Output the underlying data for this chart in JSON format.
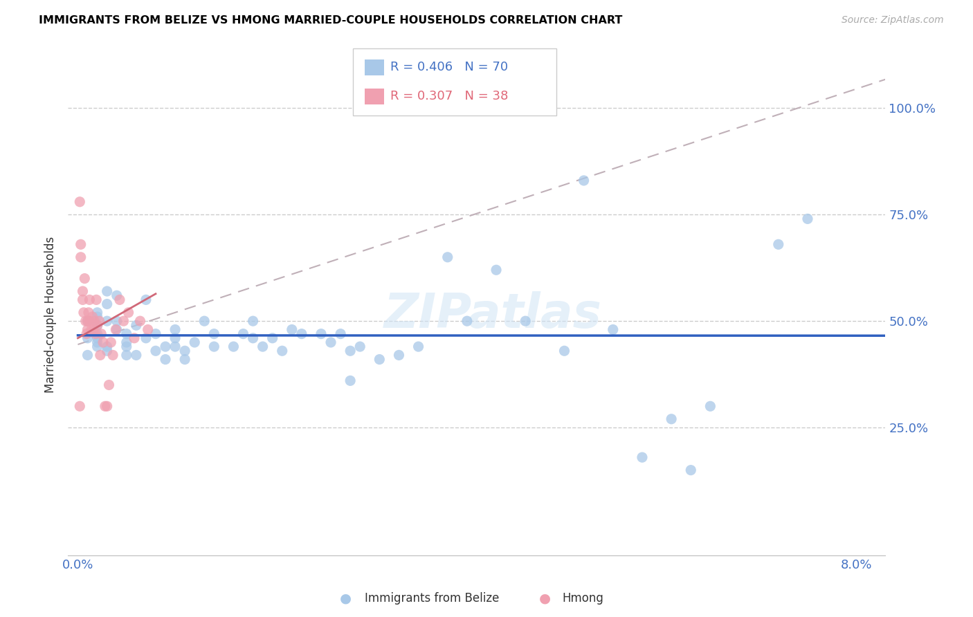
{
  "title": "IMMIGRANTS FROM BELIZE VS HMONG MARRIED-COUPLE HOUSEHOLDS CORRELATION CHART",
  "source": "Source: ZipAtlas.com",
  "ylabel": "Married-couple Households",
  "belize_color": "#a8c8e8",
  "hmong_color": "#f0a0b0",
  "belize_line_color": "#3060c0",
  "hmong_line_color": "#d06878",
  "hmong_dash_color": "#c8b0b8",
  "legend_belize_color": "#4472c4",
  "legend_hmong_color": "#e06878",
  "watermark": "ZIPatlas",
  "xmin": -0.001,
  "xmax": 0.083,
  "ymin": -0.05,
  "ymax": 1.08,
  "belize_x": [
    0.001,
    0.001,
    0.001,
    0.002,
    0.002,
    0.002,
    0.002,
    0.002,
    0.002,
    0.002,
    0.003,
    0.003,
    0.003,
    0.003,
    0.003,
    0.004,
    0.004,
    0.004,
    0.005,
    0.005,
    0.005,
    0.005,
    0.006,
    0.006,
    0.007,
    0.007,
    0.008,
    0.008,
    0.009,
    0.009,
    0.01,
    0.01,
    0.01,
    0.011,
    0.011,
    0.012,
    0.013,
    0.014,
    0.014,
    0.016,
    0.017,
    0.018,
    0.018,
    0.019,
    0.02,
    0.021,
    0.022,
    0.023,
    0.025,
    0.026,
    0.027,
    0.028,
    0.029,
    0.031,
    0.033,
    0.035,
    0.04,
    0.043,
    0.046,
    0.05,
    0.052,
    0.055,
    0.058,
    0.061,
    0.063,
    0.065,
    0.028,
    0.072,
    0.075,
    0.038
  ],
  "belize_y": [
    0.42,
    0.46,
    0.5,
    0.44,
    0.46,
    0.47,
    0.49,
    0.51,
    0.52,
    0.45,
    0.54,
    0.57,
    0.5,
    0.44,
    0.43,
    0.48,
    0.5,
    0.56,
    0.45,
    0.42,
    0.44,
    0.47,
    0.42,
    0.49,
    0.55,
    0.46,
    0.43,
    0.47,
    0.41,
    0.44,
    0.46,
    0.48,
    0.44,
    0.41,
    0.43,
    0.45,
    0.5,
    0.47,
    0.44,
    0.44,
    0.47,
    0.46,
    0.5,
    0.44,
    0.46,
    0.43,
    0.48,
    0.47,
    0.47,
    0.45,
    0.47,
    0.43,
    0.44,
    0.41,
    0.42,
    0.44,
    0.5,
    0.62,
    0.5,
    0.43,
    0.83,
    0.48,
    0.18,
    0.27,
    0.15,
    0.3,
    0.36,
    0.68,
    0.74,
    0.65
  ],
  "hmong_x": [
    0.0002,
    0.0002,
    0.0003,
    0.0003,
    0.0005,
    0.0005,
    0.0006,
    0.0007,
    0.0008,
    0.0009,
    0.001,
    0.001,
    0.0011,
    0.0012,
    0.0012,
    0.0014,
    0.0015,
    0.0016,
    0.0017,
    0.0018,
    0.0019,
    0.002,
    0.0022,
    0.0023,
    0.0024,
    0.0026,
    0.0028,
    0.003,
    0.0032,
    0.0034,
    0.0036,
    0.0039,
    0.0043,
    0.0047,
    0.0052,
    0.0058,
    0.0064,
    0.0072
  ],
  "hmong_y": [
    0.78,
    0.3,
    0.65,
    0.68,
    0.57,
    0.55,
    0.52,
    0.6,
    0.5,
    0.47,
    0.5,
    0.48,
    0.52,
    0.55,
    0.5,
    0.48,
    0.51,
    0.48,
    0.5,
    0.47,
    0.55,
    0.49,
    0.5,
    0.42,
    0.47,
    0.45,
    0.3,
    0.3,
    0.35,
    0.45,
    0.42,
    0.48,
    0.55,
    0.5,
    0.52,
    0.46,
    0.5,
    0.48
  ]
}
